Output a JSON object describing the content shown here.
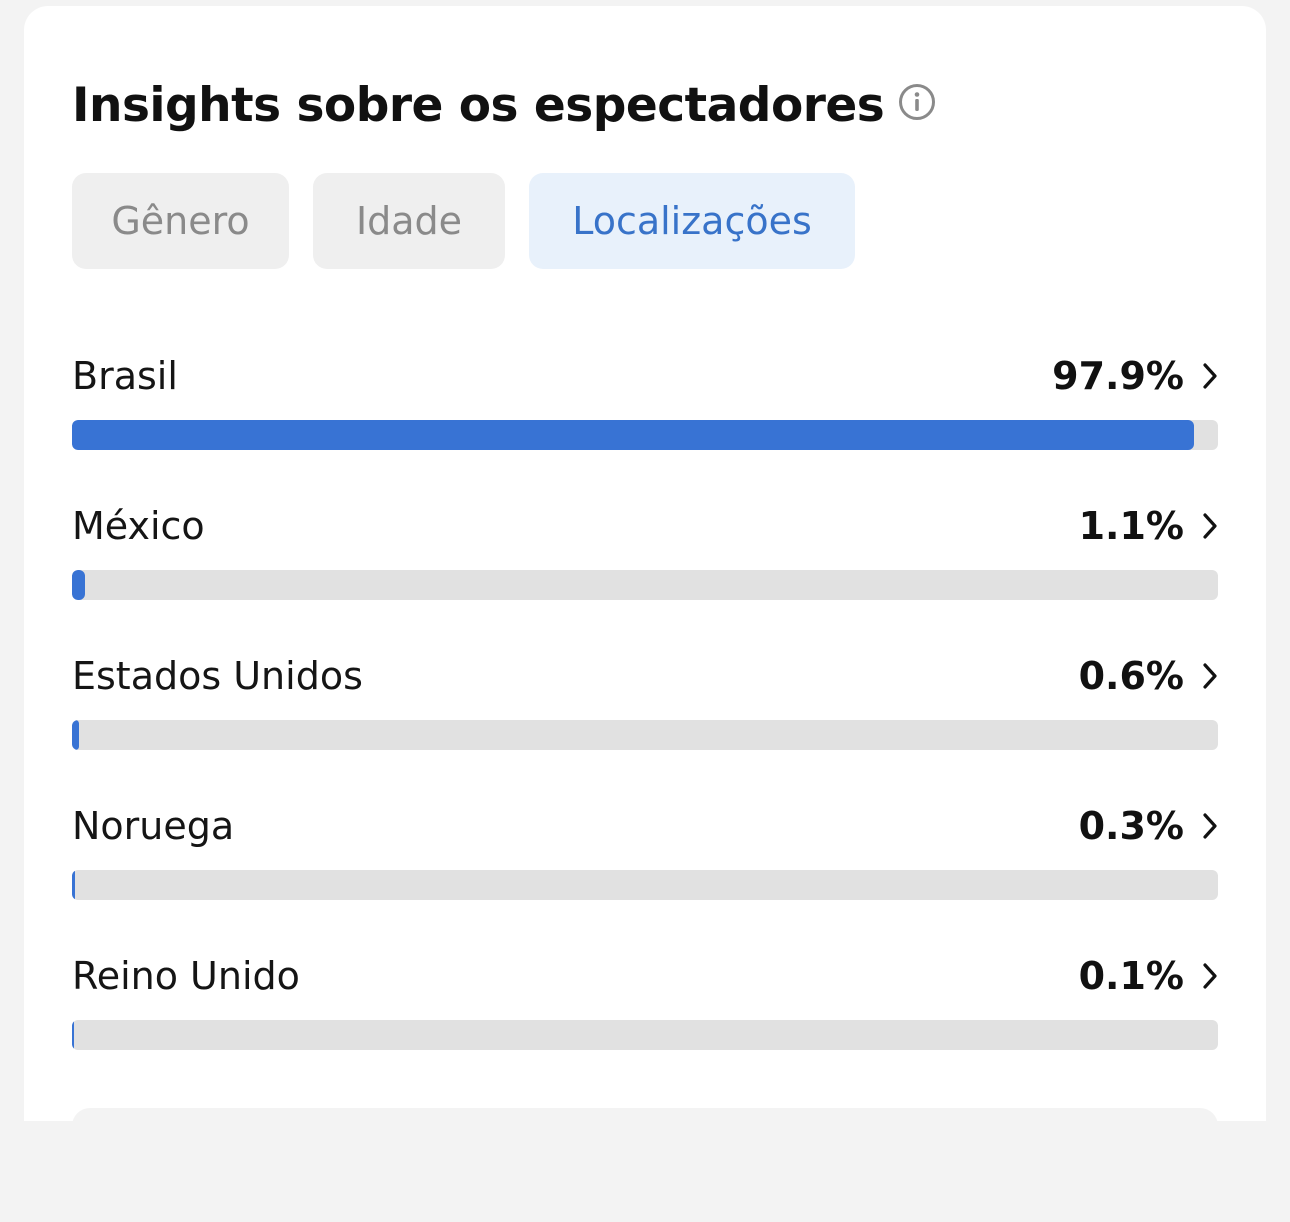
{
  "header": {
    "title": "Insights sobre os espectadores",
    "info_icon": "info-circle-icon"
  },
  "tabs": [
    {
      "label": "Gênero",
      "active": false
    },
    {
      "label": "Idade",
      "active": false
    },
    {
      "label": "Localizações",
      "active": true
    }
  ],
  "locations": [
    {
      "country": "Brasil",
      "percent_label": "97.9%",
      "value": 97.9
    },
    {
      "country": "México",
      "percent_label": "1.1%",
      "value": 1.1
    },
    {
      "country": "Estados Unidos",
      "percent_label": "0.6%",
      "value": 0.6
    },
    {
      "country": "Noruega",
      "percent_label": "0.3%",
      "value": 0.3
    },
    {
      "country": "Reino Unido",
      "percent_label": "0.1%",
      "value": 0.1
    }
  ],
  "colors": {
    "accent": "#3873d4",
    "active_tab_bg": "#e8f1fb",
    "active_tab_text": "#3873c9",
    "track": "#e1e1e1"
  },
  "icons": {
    "row_chevron": "chevron-right-icon"
  }
}
